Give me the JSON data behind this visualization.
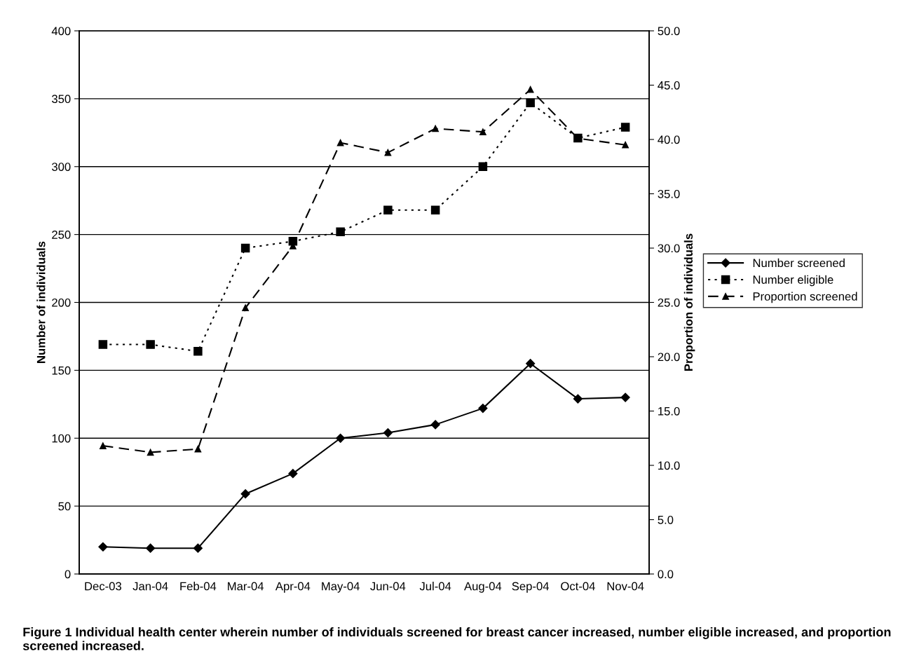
{
  "chart_data": {
    "type": "line",
    "categories": [
      "Dec-03",
      "Jan-04",
      "Feb-04",
      "Mar-04",
      "Apr-04",
      "May-04",
      "Jun-04",
      "Jul-04",
      "Aug-04",
      "Sep-04",
      "Oct-04",
      "Nov-04"
    ],
    "series": [
      {
        "name": "Number screened",
        "color": "#000000",
        "marker": "diamond",
        "line_style": "solid",
        "values": [
          20,
          19,
          19,
          59,
          74,
          100,
          104,
          110,
          122,
          155,
          129,
          130
        ]
      },
      {
        "name": "Number eligible",
        "color": "#000000",
        "marker": "square",
        "line_style": "dotted",
        "values": [
          169,
          169,
          164,
          240,
          245,
          252,
          268,
          268,
          300,
          347,
          321,
          329
        ]
      },
      {
        "name": "Proportion screened",
        "color": "#000000",
        "marker": "triangle",
        "line_style": "dashed",
        "axis": "y2",
        "values": [
          11.8,
          11.2,
          11.5,
          24.5,
          30.2,
          39.7,
          38.8,
          41.0,
          40.7,
          44.6,
          40.1,
          39.5
        ]
      }
    ],
    "ylabel": "Number of individuals",
    "y2label": "Proportion of individuals",
    "ylim": [
      0,
      400
    ],
    "yticks": [
      0,
      50,
      100,
      150,
      200,
      250,
      300,
      350,
      400
    ],
    "y2lim": [
      0,
      50
    ],
    "y2ticks": [
      {
        "value": 0,
        "label": "0.0"
      },
      {
        "value": 5,
        "label": "5.0"
      },
      {
        "value": 10,
        "label": "10.0"
      },
      {
        "value": 15,
        "label": "15.0"
      },
      {
        "value": 20,
        "label": "20.0"
      },
      {
        "value": 25,
        "label": "25.0"
      },
      {
        "value": 30,
        "label": "30.0"
      },
      {
        "value": 35,
        "label": "35.0"
      },
      {
        "value": 40,
        "label": "40.0"
      },
      {
        "value": 45,
        "label": "45.0"
      },
      {
        "value": 50,
        "label": "50.0"
      }
    ],
    "grid": "y",
    "legend": "right",
    "annotations": [
      "Figure 1 Individual health center wherein number of individuals screened for breast cancer increased, number eligible increased, and proportion screened increased."
    ]
  }
}
